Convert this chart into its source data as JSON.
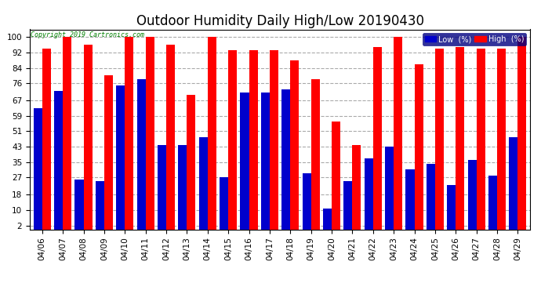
{
  "title": "Outdoor Humidity Daily High/Low 20190430",
  "copyright": "Copyright 2019 Cartronics.com",
  "dates": [
    "04/06",
    "04/07",
    "04/08",
    "04/09",
    "04/10",
    "04/11",
    "04/12",
    "04/13",
    "04/14",
    "04/15",
    "04/16",
    "04/17",
    "04/18",
    "04/19",
    "04/20",
    "04/21",
    "04/22",
    "04/23",
    "04/24",
    "04/25",
    "04/26",
    "04/27",
    "04/28",
    "04/29"
  ],
  "high": [
    94,
    100,
    96,
    80,
    100,
    100,
    96,
    70,
    100,
    93,
    93,
    93,
    88,
    78,
    56,
    44,
    95,
    100,
    86,
    94,
    95,
    94,
    94,
    100
  ],
  "low": [
    63,
    72,
    26,
    25,
    75,
    78,
    44,
    44,
    48,
    27,
    71,
    71,
    73,
    29,
    11,
    25,
    37,
    43,
    31,
    34,
    23,
    36,
    28,
    48
  ],
  "bg_color": "#ffffff",
  "plot_bg_color": "#ffffff",
  "high_color": "#ff0000",
  "low_color": "#0000cc",
  "bar_width": 0.42,
  "ylim": [
    0,
    104
  ],
  "yticks": [
    2,
    10,
    18,
    27,
    35,
    43,
    51,
    59,
    67,
    76,
    84,
    92,
    100
  ],
  "grid_color": "#aaaaaa",
  "title_fontsize": 12,
  "tick_fontsize": 7.5,
  "legend_low_label": "Low  (%)",
  "legend_high_label": "High  (%)"
}
